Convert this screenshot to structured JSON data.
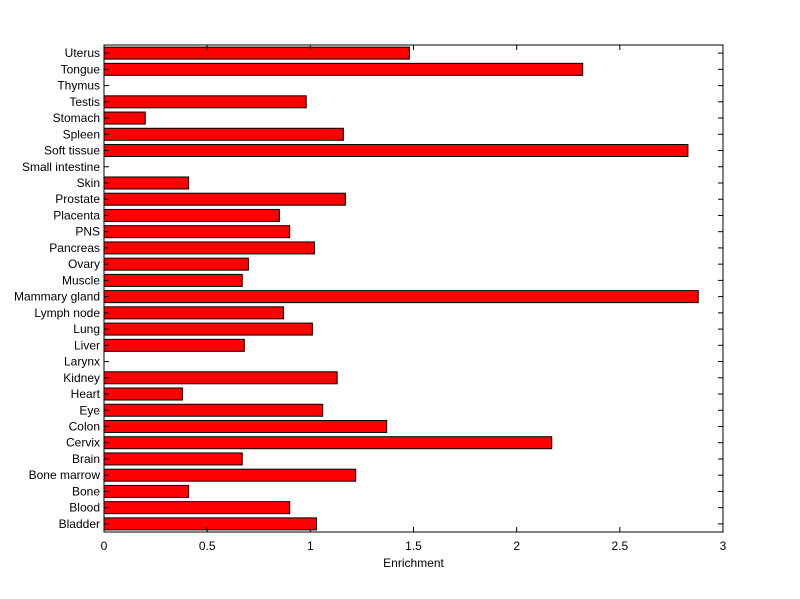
{
  "chart_data": {
    "type": "bar",
    "orientation": "horizontal",
    "xlabel": "Enrichment",
    "ylabel": "",
    "title": "",
    "xlim": [
      0,
      3
    ],
    "xticks": [
      0,
      0.5,
      1,
      1.5,
      2,
      2.5,
      3
    ],
    "xtick_labels": [
      "0",
      "0.5",
      "1",
      "1.5",
      "2",
      "2.5",
      "3"
    ],
    "grid": false,
    "bar_color": "#ff0000",
    "bar_edge_color": "#000000",
    "categories": [
      "Uterus",
      "Tongue",
      "Thymus",
      "Testis",
      "Stomach",
      "Spleen",
      "Soft tissue",
      "Small intestine",
      "Skin",
      "Prostate",
      "Placenta",
      "PNS",
      "Pancreas",
      "Ovary",
      "Muscle",
      "Mammary gland",
      "Lymph node",
      "Lung",
      "Liver",
      "Larynx",
      "Kidney",
      "Heart",
      "Eye",
      "Colon",
      "Cervix",
      "Brain",
      "Bone marrow",
      "Bone",
      "Blood",
      "Bladder"
    ],
    "values": [
      1.48,
      2.32,
      0,
      0.98,
      0.2,
      1.16,
      2.83,
      0,
      0.41,
      1.17,
      0.85,
      0.9,
      1.02,
      0.7,
      0.67,
      2.88,
      0.87,
      1.01,
      0.68,
      0,
      1.13,
      0.38,
      1.06,
      1.37,
      2.17,
      0.67,
      1.22,
      0.41,
      0.9,
      1.03
    ]
  }
}
